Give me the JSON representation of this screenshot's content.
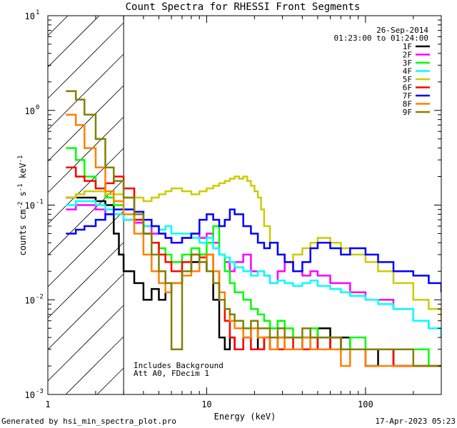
{
  "chart_data": {
    "type": "line",
    "title": "Count Spectra for RHESSI Front Segments",
    "xlabel": "Energy (keV)",
    "ylabel_parts": [
      "counts cm",
      "-2",
      " s",
      "-1",
      " keV",
      "-1"
    ],
    "x_scale": "log",
    "y_scale": "log",
    "xlim": [
      1,
      300
    ],
    "ylim": [
      0.001,
      10
    ],
    "x_ticks": [
      {
        "value": 1,
        "label": "1"
      },
      {
        "value": 10,
        "label": "10"
      },
      {
        "value": 100,
        "label": "100"
      }
    ],
    "y_ticks": [
      {
        "value": 0.001,
        "mant": "10",
        "exp": "-3"
      },
      {
        "value": 0.01,
        "mant": "10",
        "exp": "-2"
      },
      {
        "value": 0.1,
        "mant": "10",
        "exp": "-1"
      },
      {
        "value": 1,
        "mant": "10",
        "exp": "0"
      },
      {
        "value": 10,
        "mant": "10",
        "exp": "1"
      }
    ],
    "hatched_region": {
      "x_from": 1,
      "x_to": 3
    },
    "date": "26-Sep-2014",
    "time_range": "01:23:00 to 01:24:00",
    "annotations": [
      "Includes Background",
      "Att A0, FDecim 1"
    ],
    "series": [
      {
        "name": "1F",
        "color": "#000000",
        "x": [
          1.3,
          1.5,
          1.7,
          2,
          2.3,
          2.6,
          2.8,
          3,
          3.5,
          4,
          4.5,
          5,
          5.5,
          6,
          7,
          8,
          9,
          10,
          11,
          12,
          13,
          14,
          15,
          17,
          19,
          21,
          23,
          25,
          28,
          31,
          35,
          40,
          45,
          50,
          60,
          70,
          80,
          100,
          120,
          150,
          200,
          250,
          300
        ],
        "y": [
          0.12,
          0.12,
          0.12,
          0.11,
          0.1,
          0.05,
          0.03,
          0.02,
          0.015,
          0.01,
          0.013,
          0.01,
          0.012,
          0.015,
          0.02,
          0.025,
          0.03,
          0.02,
          0.01,
          0.004,
          0.003,
          0.004,
          0.003,
          0.004,
          0.005,
          0.003,
          0.004,
          0.003,
          0.004,
          0.003,
          0.003,
          0.004,
          0.003,
          0.005,
          0.003,
          0.004,
          0.003,
          0.002,
          0.003,
          0.002,
          0.002,
          0.002,
          0.002
        ]
      },
      {
        "name": "2F",
        "color": "#ff00ff",
        "x": [
          1.3,
          1.5,
          1.7,
          2,
          2.3,
          2.6,
          3,
          3.5,
          4,
          4.5,
          5,
          5.5,
          6,
          7,
          8,
          9,
          10,
          11,
          12,
          13,
          14,
          15,
          17,
          19,
          21,
          23,
          25,
          28,
          31,
          35,
          40,
          45,
          50,
          60,
          70,
          80,
          100,
          120,
          150,
          200,
          250,
          300
        ],
        "y": [
          0.09,
          0.1,
          0.1,
          0.09,
          0.08,
          0.08,
          0.07,
          0.065,
          0.06,
          0.05,
          0.05,
          0.045,
          0.04,
          0.045,
          0.05,
          0.045,
          0.05,
          0.04,
          0.03,
          0.025,
          0.02,
          0.025,
          0.03,
          0.02,
          0.02,
          0.018,
          0.015,
          0.02,
          0.025,
          0.02,
          0.018,
          0.02,
          0.018,
          0.015,
          0.015,
          0.012,
          0.01,
          0.01,
          0.008,
          0.006,
          0.005,
          0.004
        ]
      },
      {
        "name": "3F",
        "color": "#00ff00",
        "x": [
          1.3,
          1.5,
          1.7,
          2,
          2.3,
          2.6,
          3,
          3.5,
          4,
          4.5,
          5,
          5.5,
          6,
          7,
          8,
          9,
          10,
          11,
          12,
          13,
          14,
          15,
          17,
          19,
          21,
          23,
          25,
          28,
          31,
          35,
          40,
          45,
          50,
          60,
          70,
          80,
          100,
          120,
          150,
          200,
          250,
          300
        ],
        "y": [
          0.4,
          0.3,
          0.2,
          0.15,
          0.12,
          0.1,
          0.09,
          0.07,
          0.05,
          0.04,
          0.035,
          0.03,
          0.025,
          0.03,
          0.035,
          0.03,
          0.04,
          0.06,
          0.03,
          0.02,
          0.015,
          0.012,
          0.01,
          0.008,
          0.007,
          0.006,
          0.005,
          0.006,
          0.005,
          0.004,
          0.004,
          0.005,
          0.004,
          0.004,
          0.003,
          0.004,
          0.003,
          0.003,
          0.003,
          0.003,
          0.002,
          0.002
        ]
      },
      {
        "name": "4F",
        "color": "#00ffff",
        "x": [
          1.3,
          1.5,
          1.7,
          2,
          2.3,
          2.6,
          3,
          3.5,
          4,
          4.5,
          5,
          5.5,
          6,
          7,
          8,
          9,
          10,
          11,
          12,
          13,
          14,
          15,
          17,
          19,
          21,
          23,
          25,
          28,
          31,
          35,
          40,
          45,
          50,
          60,
          70,
          80,
          100,
          120,
          150,
          200,
          250,
          300
        ],
        "y": [
          0.1,
          0.11,
          0.11,
          0.1,
          0.09,
          0.08,
          0.07,
          0.07,
          0.06,
          0.06,
          0.055,
          0.06,
          0.05,
          0.05,
          0.045,
          0.04,
          0.045,
          0.035,
          0.03,
          0.028,
          0.025,
          0.022,
          0.02,
          0.018,
          0.02,
          0.018,
          0.015,
          0.016,
          0.015,
          0.014,
          0.015,
          0.016,
          0.014,
          0.013,
          0.012,
          0.011,
          0.01,
          0.009,
          0.008,
          0.006,
          0.005,
          0.004
        ]
      },
      {
        "name": "5F",
        "color": "#cccc00",
        "x": [
          1.3,
          1.5,
          1.7,
          2,
          2.3,
          2.6,
          3,
          3.5,
          4,
          4.5,
          5,
          5.5,
          6,
          7,
          8,
          9,
          10,
          11,
          12,
          13,
          14,
          15,
          16,
          17,
          18,
          19,
          20,
          21,
          22,
          23,
          25,
          28,
          31,
          35,
          40,
          45,
          50,
          60,
          70,
          80,
          100,
          120,
          150,
          200,
          250,
          300
        ],
        "y": [
          0.12,
          0.13,
          0.14,
          0.14,
          0.13,
          0.13,
          0.12,
          0.12,
          0.11,
          0.12,
          0.13,
          0.14,
          0.15,
          0.14,
          0.13,
          0.14,
          0.15,
          0.16,
          0.17,
          0.18,
          0.19,
          0.2,
          0.19,
          0.2,
          0.18,
          0.16,
          0.14,
          0.12,
          0.09,
          0.06,
          0.04,
          0.03,
          0.025,
          0.03,
          0.035,
          0.04,
          0.045,
          0.04,
          0.035,
          0.03,
          0.025,
          0.02,
          0.015,
          0.01,
          0.008,
          0.006
        ]
      },
      {
        "name": "6F",
        "color": "#ff0000",
        "x": [
          1.3,
          1.5,
          1.7,
          2,
          2.3,
          2.6,
          3,
          3.5,
          4,
          4.5,
          5,
          5.5,
          6,
          7,
          8,
          9,
          10,
          11,
          12,
          13,
          14,
          15,
          17,
          19,
          21,
          23,
          25,
          28,
          31,
          35,
          40,
          45,
          50,
          60,
          70,
          80,
          100,
          120,
          150,
          200,
          250,
          300
        ],
        "y": [
          0.25,
          0.2,
          0.18,
          0.15,
          0.17,
          0.2,
          0.15,
          0.07,
          0.05,
          0.04,
          0.03,
          0.025,
          0.02,
          0.025,
          0.03,
          0.028,
          0.03,
          0.02,
          0.01,
          0.006,
          0.004,
          0.003,
          0.004,
          0.003,
          0.003,
          0.004,
          0.003,
          0.003,
          0.004,
          0.003,
          0.003,
          0.004,
          0.003,
          0.004,
          0.003,
          0.003,
          0.003,
          0.003,
          0.002,
          0.002,
          0.002,
          0.002
        ]
      },
      {
        "name": "7F",
        "color": "#0000ff",
        "x": [
          1.3,
          1.5,
          1.7,
          2,
          2.3,
          2.6,
          3,
          3.5,
          4,
          4.5,
          5,
          5.5,
          6,
          7,
          8,
          9,
          10,
          11,
          12,
          13,
          14,
          15,
          17,
          19,
          21,
          23,
          25,
          28,
          31,
          35,
          40,
          45,
          50,
          60,
          70,
          80,
          100,
          120,
          150,
          200,
          250,
          300
        ],
        "y": [
          0.05,
          0.055,
          0.06,
          0.07,
          0.08,
          0.09,
          0.09,
          0.085,
          0.07,
          0.06,
          0.05,
          0.045,
          0.04,
          0.045,
          0.05,
          0.07,
          0.08,
          0.07,
          0.06,
          0.07,
          0.09,
          0.08,
          0.06,
          0.05,
          0.04,
          0.035,
          0.04,
          0.03,
          0.025,
          0.02,
          0.025,
          0.035,
          0.04,
          0.035,
          0.03,
          0.035,
          0.03,
          0.025,
          0.02,
          0.018,
          0.015,
          0.012
        ]
      },
      {
        "name": "8F",
        "color": "#ff8000",
        "x": [
          1.3,
          1.5,
          1.7,
          2,
          2.3,
          2.6,
          3,
          3.5,
          4,
          4.5,
          5,
          5.5,
          6,
          7,
          8,
          9,
          10,
          11,
          12,
          13,
          14,
          15,
          17,
          19,
          21,
          23,
          25,
          28,
          31,
          35,
          40,
          45,
          50,
          60,
          70,
          80,
          100,
          120,
          150,
          200,
          250,
          300
        ],
        "y": [
          0.9,
          0.7,
          0.4,
          0.25,
          0.14,
          0.11,
          0.08,
          0.05,
          0.03,
          0.02,
          0.015,
          0.012,
          0.015,
          0.018,
          0.02,
          0.025,
          0.03,
          0.02,
          0.012,
          0.008,
          0.006,
          0.005,
          0.004,
          0.005,
          0.004,
          0.004,
          0.003,
          0.004,
          0.003,
          0.003,
          0.004,
          0.003,
          0.003,
          0.003,
          0.002,
          0.003,
          0.002,
          0.002,
          0.002,
          0.002,
          0.002,
          0.002
        ]
      },
      {
        "name": "9F",
        "color": "#808000",
        "x": [
          1.3,
          1.5,
          1.7,
          2,
          2.3,
          2.6,
          3,
          3.5,
          4,
          4.5,
          5,
          5.5,
          6,
          7,
          8,
          9,
          10,
          11,
          12,
          13,
          14,
          15,
          17,
          19,
          21,
          23,
          25,
          28,
          31,
          35,
          40,
          45,
          50,
          60,
          70,
          80,
          100,
          120,
          150,
          200,
          250,
          300
        ],
        "y": [
          1.6,
          1.3,
          0.9,
          0.5,
          0.25,
          0.18,
          0.12,
          0.08,
          0.05,
          0.03,
          0.02,
          0.015,
          0.003,
          0.02,
          0.03,
          0.025,
          0.02,
          0.015,
          0.01,
          0.008,
          0.007,
          0.006,
          0.005,
          0.006,
          0.005,
          0.005,
          0.004,
          0.005,
          0.004,
          0.004,
          0.005,
          0.004,
          0.004,
          0.004,
          0.003,
          0.003,
          0.003,
          0.003,
          0.003,
          0.002,
          0.002,
          0.002
        ]
      }
    ]
  },
  "footer": {
    "generated_by": "Generated by hsi_min_spectra_plot.pro",
    "timestamp": "17-Apr-2023 05:23"
  }
}
